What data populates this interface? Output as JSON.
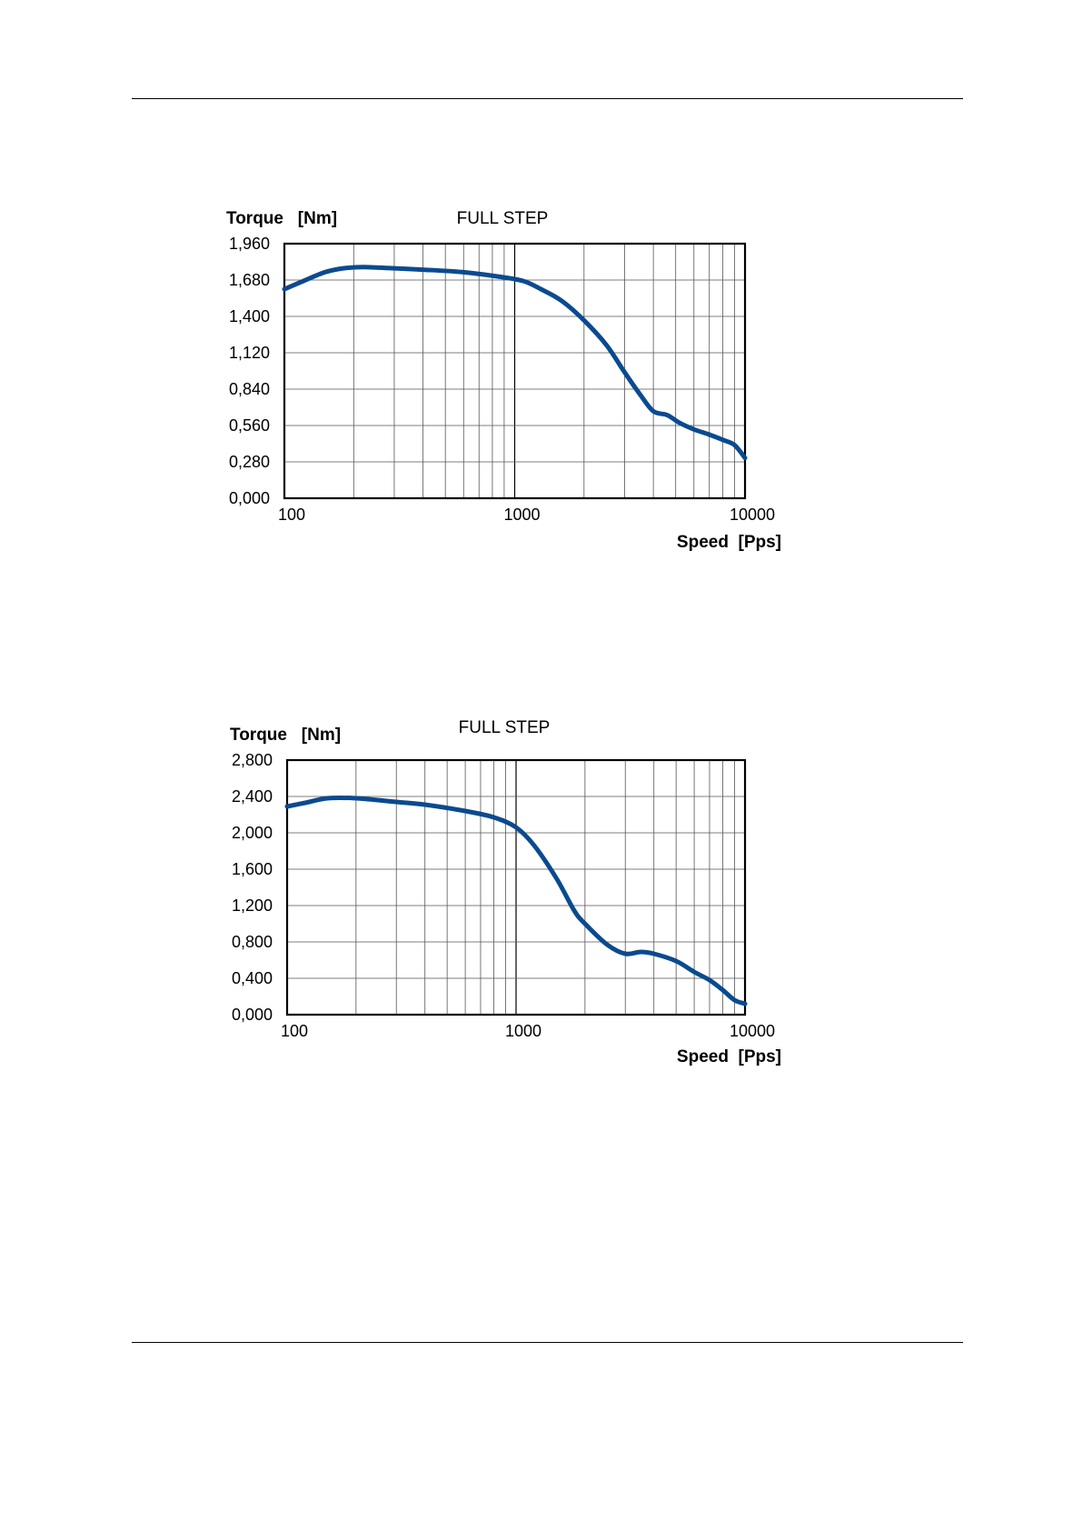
{
  "page": {
    "bg": "#ffffff",
    "curve_color": "#0a4a8f"
  },
  "chart_data": [
    {
      "type": "line",
      "title": "FULL STEP",
      "ylabel": "Torque   [Nm]",
      "xlabel": "Speed  [Pps]",
      "x_scale": "log",
      "xlim": [
        100,
        10000
      ],
      "ylim": [
        0,
        1.96
      ],
      "x_ticks": [
        "100",
        "1000",
        "10000"
      ],
      "y_ticks": [
        "0,000",
        "0,280",
        "0,560",
        "0,840",
        "1,120",
        "1,400",
        "1,680",
        "1,960"
      ],
      "grid": true,
      "series": [
        {
          "x": [
            100,
            120,
            150,
            180,
            220,
            300,
            400,
            600,
            900,
            1100,
            1300,
            1600,
            2000,
            2500,
            3000,
            3500,
            4000,
            4600,
            5200,
            6000,
            7000,
            8000,
            9000,
            10000
          ],
          "y": [
            1.61,
            1.67,
            1.74,
            1.77,
            1.78,
            1.77,
            1.76,
            1.74,
            1.7,
            1.67,
            1.61,
            1.52,
            1.37,
            1.18,
            0.97,
            0.8,
            0.67,
            0.64,
            0.58,
            0.53,
            0.49,
            0.45,
            0.41,
            0.31
          ]
        }
      ]
    },
    {
      "type": "line",
      "title": "FULL STEP",
      "ylabel": "Torque   [Nm]",
      "xlabel": "Speed  [Pps]",
      "x_scale": "log",
      "xlim": [
        100,
        10000
      ],
      "ylim": [
        0,
        2.8
      ],
      "x_ticks": [
        "100",
        "1000",
        "10000"
      ],
      "y_ticks": [
        "0,000",
        "0,400",
        "0,800",
        "1,200",
        "1,600",
        "2,000",
        "2,400",
        "2,800"
      ],
      "grid": true,
      "series": [
        {
          "x": [
            100,
            120,
            150,
            200,
            300,
            400,
            600,
            800,
            1000,
            1200,
            1500,
            1800,
            2000,
            2500,
            3000,
            3500,
            4000,
            5000,
            6000,
            7000,
            8000,
            9000,
            10000
          ],
          "y": [
            2.29,
            2.33,
            2.38,
            2.38,
            2.34,
            2.31,
            2.24,
            2.17,
            2.06,
            1.86,
            1.5,
            1.14,
            1.0,
            0.77,
            0.67,
            0.69,
            0.67,
            0.59,
            0.47,
            0.38,
            0.27,
            0.16,
            0.12
          ]
        }
      ]
    }
  ]
}
